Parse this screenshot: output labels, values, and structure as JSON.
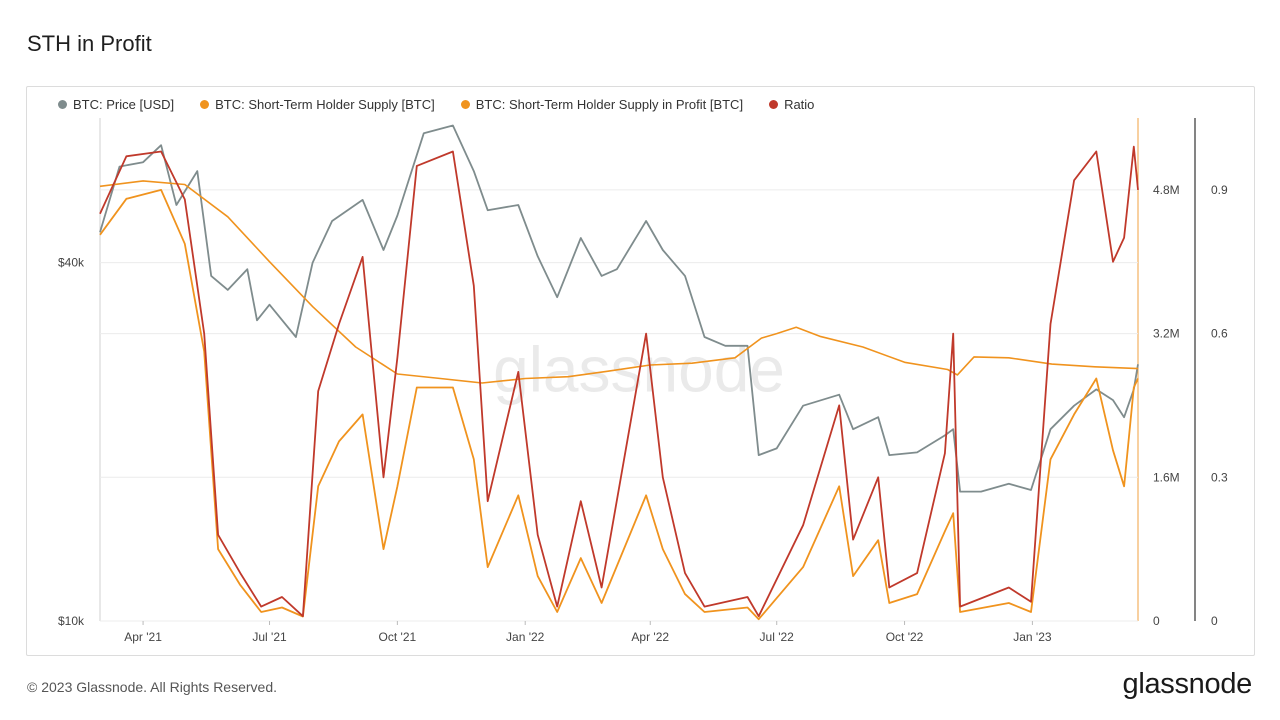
{
  "title": "STH in Profit",
  "footer": {
    "copyright": "© 2023 Glassnode. All Rights Reserved.",
    "logo_text": "glassnode"
  },
  "watermark": "glassnode",
  "legend": [
    {
      "label": "BTC: Price [USD]",
      "color": "#7f8c8d"
    },
    {
      "label": "BTC: Short-Term Holder Supply [BTC]",
      "color": "#f0931e"
    },
    {
      "label": "BTC: Short-Term Holder Supply in Profit [BTC]",
      "color": "#f0931e"
    },
    {
      "label": "Ratio",
      "color": "#c0392b"
    }
  ],
  "chart_data": {
    "type": "line",
    "title": "STH in Profit",
    "x_range": [
      "2021-03-01",
      "2023-03-18"
    ],
    "x_ticks": [
      {
        "date": "2021-04-01",
        "label": "Apr '21"
      },
      {
        "date": "2021-07-01",
        "label": "Jul '21"
      },
      {
        "date": "2021-10-01",
        "label": "Oct '21"
      },
      {
        "date": "2022-01-01",
        "label": "Jan '22"
      },
      {
        "date": "2022-04-01",
        "label": "Apr '22"
      },
      {
        "date": "2022-07-01",
        "label": "Jul '22"
      },
      {
        "date": "2022-10-01",
        "label": "Oct '22"
      },
      {
        "date": "2023-01-01",
        "label": "Jan '23"
      }
    ],
    "axes": {
      "price": {
        "scale": "log",
        "range": [
          10000,
          70000
        ],
        "ticks": [
          {
            "value": 10000,
            "label": "$10k"
          },
          {
            "value": 40000,
            "label": "$40k"
          }
        ]
      },
      "supply": {
        "scale": "linear",
        "range": [
          0,
          5600000
        ],
        "ticks": [
          {
            "value": 0,
            "label": "0"
          },
          {
            "value": 1600000,
            "label": "1.6M"
          },
          {
            "value": 3200000,
            "label": "3.2M"
          },
          {
            "value": 4800000,
            "label": "4.8M"
          }
        ]
      },
      "ratio": {
        "scale": "linear",
        "range": [
          0,
          1.05
        ],
        "ticks": [
          {
            "value": 0,
            "label": "0"
          },
          {
            "value": 0.3,
            "label": "0.3"
          },
          {
            "value": 0.6,
            "label": "0.6"
          },
          {
            "value": 0.9,
            "label": "0.9"
          }
        ]
      }
    },
    "grid": true,
    "legend_position": "top-left",
    "series": [
      {
        "name": "BTC: Price [USD]",
        "axis": "price",
        "color": "#7f8c8d",
        "points": [
          [
            "2021-03-01",
            45000
          ],
          [
            "2021-03-15",
            58000
          ],
          [
            "2021-04-01",
            59000
          ],
          [
            "2021-04-14",
            63000
          ],
          [
            "2021-04-25",
            50000
          ],
          [
            "2021-05-10",
            57000
          ],
          [
            "2021-05-20",
            38000
          ],
          [
            "2021-06-01",
            36000
          ],
          [
            "2021-06-15",
            39000
          ],
          [
            "2021-06-22",
            32000
          ],
          [
            "2021-07-01",
            34000
          ],
          [
            "2021-07-20",
            30000
          ],
          [
            "2021-08-01",
            40000
          ],
          [
            "2021-08-15",
            47000
          ],
          [
            "2021-09-06",
            51000
          ],
          [
            "2021-09-21",
            42000
          ],
          [
            "2021-10-01",
            48000
          ],
          [
            "2021-10-20",
            66000
          ],
          [
            "2021-11-10",
            68000
          ],
          [
            "2021-11-25",
            57000
          ],
          [
            "2021-12-05",
            49000
          ],
          [
            "2021-12-27",
            50000
          ],
          [
            "2022-01-10",
            41000
          ],
          [
            "2022-01-24",
            35000
          ],
          [
            "2022-02-10",
            44000
          ],
          [
            "2022-02-25",
            38000
          ],
          [
            "2022-03-08",
            39000
          ],
          [
            "2022-03-29",
            47000
          ],
          [
            "2022-04-10",
            42000
          ],
          [
            "2022-04-26",
            38000
          ],
          [
            "2022-05-10",
            30000
          ],
          [
            "2022-05-25",
            29000
          ],
          [
            "2022-06-10",
            29000
          ],
          [
            "2022-06-18",
            19000
          ],
          [
            "2022-07-01",
            19500
          ],
          [
            "2022-07-20",
            23000
          ],
          [
            "2022-08-15",
            24000
          ],
          [
            "2022-08-25",
            21000
          ],
          [
            "2022-09-12",
            22000
          ],
          [
            "2022-09-20",
            19000
          ],
          [
            "2022-10-10",
            19200
          ],
          [
            "2022-10-30",
            20500
          ],
          [
            "2022-11-05",
            21000
          ],
          [
            "2022-11-10",
            16500
          ],
          [
            "2022-11-25",
            16500
          ],
          [
            "2022-12-15",
            17000
          ],
          [
            "2022-12-31",
            16600
          ],
          [
            "2023-01-14",
            21000
          ],
          [
            "2023-01-31",
            23000
          ],
          [
            "2023-02-16",
            24500
          ],
          [
            "2023-02-28",
            23500
          ],
          [
            "2023-03-08",
            22000
          ],
          [
            "2023-03-15",
            24500
          ],
          [
            "2023-03-18",
            27000
          ]
        ]
      },
      {
        "name": "BTC: Short-Term Holder Supply [BTC]",
        "axis": "supply",
        "color": "#f0931e",
        "points": [
          [
            "2021-03-01",
            4840000
          ],
          [
            "2021-04-01",
            4900000
          ],
          [
            "2021-05-01",
            4860000
          ],
          [
            "2021-06-01",
            4500000
          ],
          [
            "2021-07-01",
            4000000
          ],
          [
            "2021-08-01",
            3500000
          ],
          [
            "2021-09-01",
            3050000
          ],
          [
            "2021-10-01",
            2750000
          ],
          [
            "2021-11-01",
            2700000
          ],
          [
            "2021-12-01",
            2650000
          ],
          [
            "2022-01-01",
            2700000
          ],
          [
            "2022-02-01",
            2720000
          ],
          [
            "2022-03-01",
            2780000
          ],
          [
            "2022-04-01",
            2850000
          ],
          [
            "2022-05-01",
            2870000
          ],
          [
            "2022-06-01",
            2930000
          ],
          [
            "2022-06-20",
            3150000
          ],
          [
            "2022-07-01",
            3200000
          ],
          [
            "2022-07-15",
            3270000
          ],
          [
            "2022-08-01",
            3170000
          ],
          [
            "2022-09-01",
            3050000
          ],
          [
            "2022-10-01",
            2880000
          ],
          [
            "2022-11-01",
            2800000
          ],
          [
            "2022-11-08",
            2740000
          ],
          [
            "2022-11-20",
            2940000
          ],
          [
            "2022-12-15",
            2930000
          ],
          [
            "2023-01-15",
            2860000
          ],
          [
            "2023-02-15",
            2830000
          ],
          [
            "2023-03-18",
            2810000
          ]
        ]
      },
      {
        "name": "BTC: Short-Term Holder Supply in Profit [BTC]",
        "axis": "supply",
        "color": "#f0931e",
        "points": [
          [
            "2021-03-01",
            4300000
          ],
          [
            "2021-03-20",
            4700000
          ],
          [
            "2021-04-14",
            4800000
          ],
          [
            "2021-05-01",
            4200000
          ],
          [
            "2021-05-15",
            3000000
          ],
          [
            "2021-05-25",
            800000
          ],
          [
            "2021-06-10",
            400000
          ],
          [
            "2021-06-25",
            100000
          ],
          [
            "2021-07-10",
            150000
          ],
          [
            "2021-07-25",
            50000
          ],
          [
            "2021-08-05",
            1500000
          ],
          [
            "2021-08-20",
            2000000
          ],
          [
            "2021-09-06",
            2300000
          ],
          [
            "2021-09-21",
            800000
          ],
          [
            "2021-10-01",
            1500000
          ],
          [
            "2021-10-15",
            2600000
          ],
          [
            "2021-11-10",
            2600000
          ],
          [
            "2021-11-25",
            1800000
          ],
          [
            "2021-12-05",
            600000
          ],
          [
            "2021-12-27",
            1400000
          ],
          [
            "2022-01-10",
            500000
          ],
          [
            "2022-01-24",
            100000
          ],
          [
            "2022-02-10",
            700000
          ],
          [
            "2022-02-25",
            200000
          ],
          [
            "2022-03-29",
            1400000
          ],
          [
            "2022-04-10",
            800000
          ],
          [
            "2022-04-26",
            300000
          ],
          [
            "2022-05-10",
            100000
          ],
          [
            "2022-06-10",
            150000
          ],
          [
            "2022-06-18",
            20000
          ],
          [
            "2022-07-20",
            600000
          ],
          [
            "2022-08-15",
            1500000
          ],
          [
            "2022-08-25",
            500000
          ],
          [
            "2022-09-12",
            900000
          ],
          [
            "2022-09-20",
            200000
          ],
          [
            "2022-10-10",
            300000
          ],
          [
            "2022-10-30",
            1000000
          ],
          [
            "2022-11-05",
            1200000
          ],
          [
            "2022-11-10",
            100000
          ],
          [
            "2022-12-15",
            200000
          ],
          [
            "2022-12-31",
            100000
          ],
          [
            "2023-01-14",
            1800000
          ],
          [
            "2023-01-31",
            2300000
          ],
          [
            "2023-02-16",
            2700000
          ],
          [
            "2023-02-28",
            1900000
          ],
          [
            "2023-03-08",
            1500000
          ],
          [
            "2023-03-15",
            2600000
          ],
          [
            "2023-03-18",
            2700000
          ]
        ]
      },
      {
        "name": "Ratio",
        "axis": "ratio",
        "color": "#c0392b",
        "points": [
          [
            "2021-03-01",
            0.85
          ],
          [
            "2021-03-20",
            0.97
          ],
          [
            "2021-04-14",
            0.98
          ],
          [
            "2021-05-01",
            0.88
          ],
          [
            "2021-05-15",
            0.6
          ],
          [
            "2021-05-25",
            0.18
          ],
          [
            "2021-06-10",
            0.1
          ],
          [
            "2021-06-25",
            0.03
          ],
          [
            "2021-07-10",
            0.05
          ],
          [
            "2021-07-25",
            0.01
          ],
          [
            "2021-08-05",
            0.48
          ],
          [
            "2021-08-20",
            0.62
          ],
          [
            "2021-09-06",
            0.76
          ],
          [
            "2021-09-21",
            0.3
          ],
          [
            "2021-10-01",
            0.55
          ],
          [
            "2021-10-15",
            0.95
          ],
          [
            "2021-11-10",
            0.98
          ],
          [
            "2021-11-25",
            0.7
          ],
          [
            "2021-12-05",
            0.25
          ],
          [
            "2021-12-27",
            0.52
          ],
          [
            "2022-01-10",
            0.18
          ],
          [
            "2022-01-24",
            0.03
          ],
          [
            "2022-02-10",
            0.25
          ],
          [
            "2022-02-25",
            0.07
          ],
          [
            "2022-03-29",
            0.6
          ],
          [
            "2022-04-10",
            0.3
          ],
          [
            "2022-04-26",
            0.1
          ],
          [
            "2022-05-10",
            0.03
          ],
          [
            "2022-06-10",
            0.05
          ],
          [
            "2022-06-18",
            0.01
          ],
          [
            "2022-07-20",
            0.2
          ],
          [
            "2022-08-15",
            0.45
          ],
          [
            "2022-08-25",
            0.17
          ],
          [
            "2022-09-12",
            0.3
          ],
          [
            "2022-09-20",
            0.07
          ],
          [
            "2022-10-10",
            0.1
          ],
          [
            "2022-10-30",
            0.35
          ],
          [
            "2022-11-05",
            0.6
          ],
          [
            "2022-11-10",
            0.03
          ],
          [
            "2022-12-15",
            0.07
          ],
          [
            "2022-12-31",
            0.04
          ],
          [
            "2023-01-14",
            0.62
          ],
          [
            "2023-01-31",
            0.92
          ],
          [
            "2023-02-16",
            0.98
          ],
          [
            "2023-02-28",
            0.75
          ],
          [
            "2023-03-08",
            0.8
          ],
          [
            "2023-03-15",
            0.99
          ],
          [
            "2023-03-18",
            0.9
          ]
        ]
      }
    ]
  }
}
